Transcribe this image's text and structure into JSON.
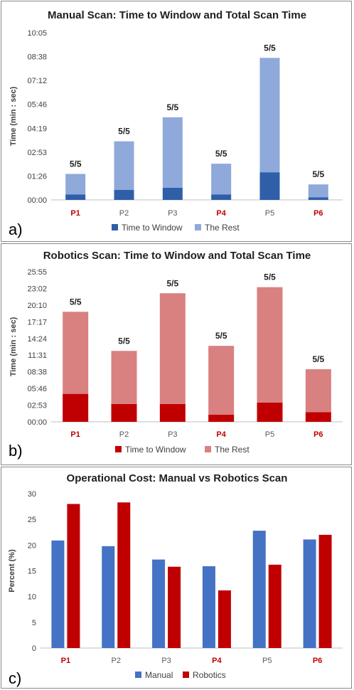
{
  "chart_data": [
    {
      "type": "bar",
      "stacked": true,
      "panel_label": "a)",
      "title": "Manual Scan: Time to Window and Total Scan Time",
      "xlabel": "",
      "ylabel": "Time (min : sec)",
      "categories": [
        "P1",
        "P2",
        "P3",
        "P4",
        "P5",
        "P6"
      ],
      "category_colors": [
        "#c00000",
        "#595959",
        "#595959",
        "#c00000",
        "#595959",
        "#c00000"
      ],
      "y_tick_labels": [
        "00:00",
        "01:26",
        "02:53",
        "04:19",
        "05:46",
        "07:12",
        "08:38",
        "10:05"
      ],
      "ylim_seconds": [
        0,
        605
      ],
      "series": [
        {
          "name": "Time to Window",
          "color": "#2e5fa8",
          "values_seconds": [
            20,
            36,
            44,
            20,
            100,
            9
          ]
        },
        {
          "name": "The Rest",
          "color": "#8fa9db",
          "values_seconds": [
            74,
            176,
            255,
            111,
            414,
            47
          ]
        }
      ],
      "data_labels": [
        "5/5",
        "5/5",
        "5/5",
        "5/5",
        "5/5",
        "5/5"
      ],
      "legend": "bottom",
      "grid": false
    },
    {
      "type": "bar",
      "stacked": true,
      "panel_label": "b)",
      "title": "Robotics Scan: Time to Window and Total Scan Time",
      "xlabel": "",
      "ylabel": "Time (min : sec)",
      "categories": [
        "P1",
        "P2",
        "P3",
        "P4",
        "P5",
        "P6"
      ],
      "category_colors": [
        "#c00000",
        "#595959",
        "#595959",
        "#c00000",
        "#595959",
        "#c00000"
      ],
      "y_tick_labels": [
        "00:00",
        "02:53",
        "05:46",
        "08:38",
        "11:31",
        "14:24",
        "17:17",
        "20:10",
        "23:02",
        "25:55"
      ],
      "ylim_seconds": [
        0,
        1555
      ],
      "series": [
        {
          "name": "Time to Window",
          "color": "#c00000",
          "values_seconds": [
            290,
            185,
            185,
            75,
            200,
            100
          ]
        },
        {
          "name": "The Rest",
          "color": "#d98080",
          "values_seconds": [
            850,
            550,
            1147,
            712,
            1195,
            445
          ]
        }
      ],
      "data_labels": [
        "5/5",
        "5/5",
        "5/5",
        "5/5",
        "5/5",
        "5/5"
      ],
      "legend": "bottom",
      "grid": false
    },
    {
      "type": "bar",
      "stacked": false,
      "panel_label": "c)",
      "title": "Operational Cost: Manual vs Robotics Scan",
      "xlabel": "",
      "ylabel": "Percent (%)",
      "categories": [
        "P1",
        "P2",
        "P3",
        "P4",
        "P5",
        "P6"
      ],
      "category_colors": [
        "#c00000",
        "#595959",
        "#595959",
        "#c00000",
        "#595959",
        "#c00000"
      ],
      "y_tick_labels": [
        "0",
        "5",
        "10",
        "15",
        "20",
        "25",
        "30"
      ],
      "ylim": [
        0,
        30
      ],
      "series": [
        {
          "name": "Manual",
          "color": "#4472c4",
          "values": [
            20.9,
            19.8,
            17.2,
            15.9,
            22.8,
            21.1
          ]
        },
        {
          "name": "Robotics",
          "color": "#c00000",
          "values": [
            28.0,
            28.3,
            15.8,
            11.2,
            16.2,
            22.0
          ]
        }
      ],
      "legend": "bottom",
      "grid": false
    }
  ]
}
